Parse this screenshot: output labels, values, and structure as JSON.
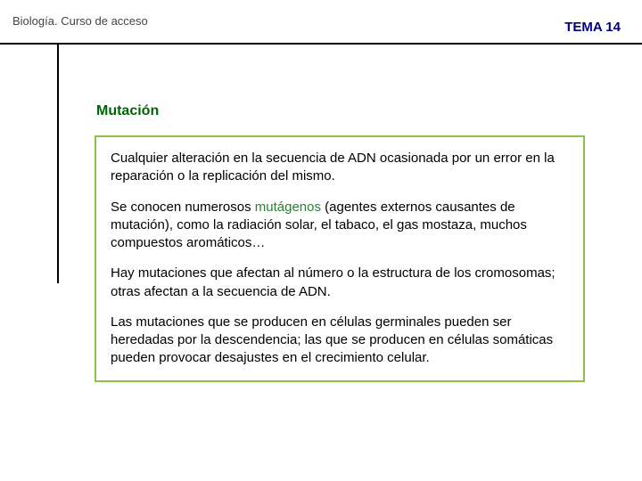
{
  "header": {
    "course": "Biología. Curso de acceso",
    "topic": "TEMA 14",
    "course_color": "#444444",
    "topic_color": "#000080"
  },
  "section": {
    "heading": "Mutación",
    "heading_color": "#006400"
  },
  "box": {
    "border_color": "#8bc34a",
    "text_color": "#000000",
    "keyword_color": "#2e7d32",
    "paragraphs": [
      {
        "segments": [
          {
            "t": "Cualquier alteración en la secuencia de ADN ocasionada por un error en la reparación o la replicación del mismo."
          }
        ]
      },
      {
        "segments": [
          {
            "t": "Se conocen numerosos "
          },
          {
            "t": "mutágenos",
            "kw": true
          },
          {
            "t": " (agentes externos causantes de mutación), como la radiación solar, el tabaco, el gas mostaza, muchos compuestos aromáticos…"
          }
        ]
      },
      {
        "segments": [
          {
            "t": "Hay mutaciones que afectan al número o la estructura de los cromosomas; otras afectan a la secuencia de ADN."
          }
        ]
      },
      {
        "segments": [
          {
            "t": "Las mutaciones que se producen en células germinales pueden ser heredadas por la descendencia; las que se producen en células somáticas pueden provocar desajustes en el crecimiento celular."
          }
        ]
      }
    ]
  }
}
